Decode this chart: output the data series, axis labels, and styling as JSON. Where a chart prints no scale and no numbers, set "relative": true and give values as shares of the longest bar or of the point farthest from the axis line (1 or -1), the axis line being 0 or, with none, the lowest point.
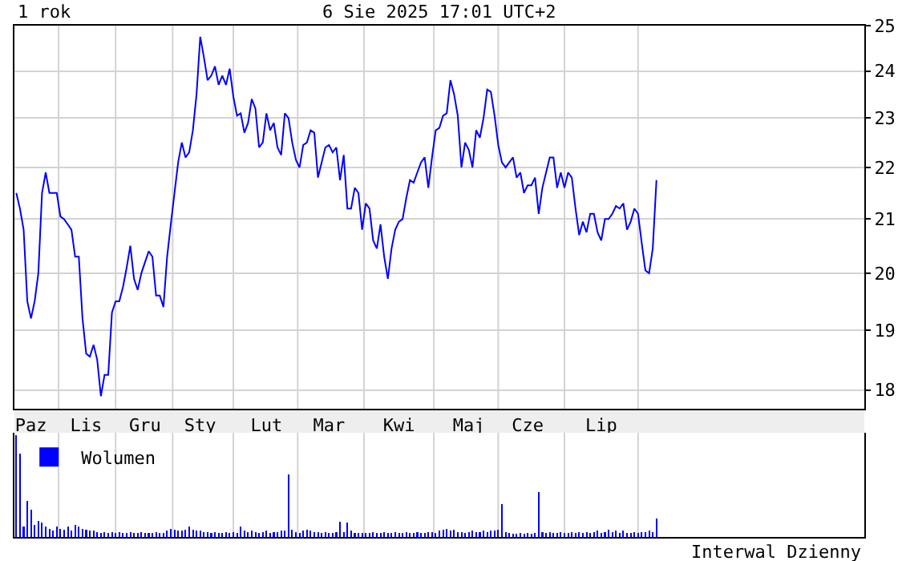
{
  "chart_data": [
    {
      "type": "line",
      "title": "1 rok",
      "subtitle": "6 Sie 2025 17:01 UTC+2",
      "log": true,
      "grid": true,
      "ylim": [
        17.7,
        25
      ],
      "yticks": [
        18,
        19,
        20,
        21,
        22,
        23,
        24,
        25
      ],
      "categories": [
        null,
        null,
        null,
        null,
        "Paz",
        null,
        null,
        null,
        null,
        null,
        null,
        null,
        null,
        null,
        null,
        null,
        null,
        null,
        null,
        "Lis",
        null,
        null,
        null,
        null,
        null,
        null,
        null,
        null,
        null,
        null,
        null,
        null,
        null,
        null,
        null,
        "Gru",
        null,
        null,
        null,
        null,
        null,
        null,
        null,
        null,
        null,
        null,
        null,
        null,
        null,
        null,
        "Sty",
        null,
        null,
        null,
        null,
        null,
        null,
        null,
        null,
        null,
        null,
        null,
        null,
        null,
        null,
        null,
        null,
        null,
        "Lut",
        null,
        null,
        null,
        null,
        null,
        null,
        null,
        null,
        null,
        null,
        null,
        null,
        null,
        null,
        null,
        null,
        "Mar",
        null,
        null,
        null,
        null,
        null,
        null,
        null,
        null,
        null,
        null,
        null,
        null,
        null,
        null,
        null,
        null,
        null,
        null,
        "Kwi",
        null,
        null,
        null,
        null,
        null,
        null,
        null,
        null,
        null,
        null,
        null,
        null,
        null,
        null,
        null,
        null,
        null,
        null,
        "Maj",
        null,
        null,
        null,
        null,
        null,
        null,
        null,
        null,
        null,
        null,
        null,
        null,
        null,
        null,
        null,
        "Cze",
        null,
        null,
        null,
        null,
        null,
        null,
        null,
        null,
        null,
        null,
        null,
        null,
        null,
        null,
        null,
        null,
        null,
        null,
        null,
        "Lip",
        null,
        null,
        null,
        null,
        null,
        null,
        null,
        null,
        null,
        null,
        null,
        null,
        null,
        null,
        null,
        null,
        null,
        null,
        null,
        null,
        null,
        null,
        null,
        null,
        null,
        null,
        null,
        null,
        null,
        null,
        null,
        null,
        null,
        null,
        null,
        null,
        null,
        null,
        null,
        null,
        null,
        null,
        null,
        null,
        null,
        null,
        null,
        null,
        null,
        null,
        null,
        null,
        null,
        null,
        null,
        null,
        null,
        null,
        null,
        null,
        null,
        null,
        null,
        null,
        null,
        null,
        null,
        null,
        null,
        null,
        null
      ],
      "series": [
        {
          "color": "#0000ff",
          "values": [
            21.5,
            21.2,
            20.8,
            19.5,
            19.2,
            19.5,
            20.0,
            21.5,
            21.9,
            21.5,
            21.5,
            21.5,
            21.05,
            21.0,
            20.9,
            20.8,
            20.3,
            20.3,
            19.2,
            18.6,
            18.55,
            18.75,
            18.5,
            17.9,
            18.25,
            18.25,
            19.3,
            19.5,
            19.5,
            19.75,
            20.1,
            20.5,
            19.9,
            19.7,
            20.0,
            20.2,
            20.4,
            20.3,
            19.6,
            19.6,
            19.4,
            20.3,
            20.9,
            21.5,
            22.1,
            22.5,
            22.2,
            22.3,
            22.75,
            23.5,
            24.75,
            24.3,
            23.8,
            23.9,
            24.1,
            23.7,
            23.9,
            23.7,
            24.05,
            23.45,
            23.05,
            23.1,
            22.7,
            22.9,
            23.4,
            23.2,
            22.4,
            22.5,
            23.1,
            22.75,
            22.9,
            22.4,
            22.25,
            23.1,
            23.0,
            22.5,
            22.15,
            22.0,
            22.45,
            22.5,
            22.75,
            22.7,
            21.8,
            22.1,
            22.4,
            22.45,
            22.3,
            22.4,
            21.75,
            22.25,
            21.2,
            21.2,
            21.6,
            21.5,
            20.8,
            21.3,
            21.2,
            20.6,
            20.45,
            20.9,
            20.3,
            19.9,
            20.45,
            20.8,
            20.95,
            21.0,
            21.4,
            21.75,
            21.7,
            21.9,
            22.1,
            22.2,
            21.6,
            22.2,
            22.75,
            22.8,
            23.05,
            23.1,
            23.8,
            23.5,
            23.05,
            22.0,
            22.5,
            22.35,
            22.0,
            22.75,
            22.6,
            23.0,
            23.6,
            23.55,
            23.05,
            22.45,
            22.1,
            22.0,
            22.1,
            22.2,
            21.8,
            21.9,
            21.5,
            21.65,
            21.65,
            21.8,
            21.1,
            21.6,
            21.9,
            22.2,
            22.2,
            21.6,
            21.9,
            21.6,
            21.9,
            21.8,
            21.2,
            20.7,
            20.95,
            20.75,
            21.1,
            21.1,
            20.75,
            20.6,
            21.0,
            21.0,
            21.1,
            21.25,
            21.2,
            21.3,
            20.8,
            20.95,
            21.2,
            21.1,
            20.55,
            20.05,
            20.0,
            20.45,
            21.75,
            null,
            null,
            null,
            null,
            null,
            null,
            null,
            null,
            null,
            null,
            null,
            null,
            null,
            null,
            null,
            null,
            null,
            null,
            null,
            null,
            null,
            null,
            null,
            null,
            null,
            null,
            null,
            null,
            null,
            null,
            null,
            null,
            null,
            null,
            null,
            null,
            null,
            null,
            null,
            null,
            null,
            null,
            null,
            null,
            null,
            null,
            null,
            null,
            null,
            null,
            null,
            null,
            null,
            null,
            null,
            null
          ]
        }
      ]
    },
    {
      "type": "bar",
      "relative": true,
      "tick_labels": false,
      "grid": "x",
      "legend": "top left",
      "annotations": [
        "Interwal Dzienny"
      ],
      "categories": [
        null,
        null,
        null,
        null,
        null,
        null,
        null,
        null,
        null,
        null,
        null,
        null,
        null,
        null,
        null,
        null,
        null,
        null,
        null,
        null,
        null,
        null,
        null,
        null,
        null,
        null,
        null,
        null,
        null,
        null,
        null,
        null,
        null,
        null,
        null,
        null,
        null,
        null,
        null,
        null,
        null,
        null,
        null,
        null,
        null,
        null,
        null,
        null,
        null,
        null,
        null,
        null,
        null,
        null,
        null,
        null,
        null,
        null,
        null,
        null,
        null,
        null,
        null,
        null,
        null,
        null,
        null,
        null,
        null,
        null,
        null,
        null,
        null,
        null,
        null,
        null,
        null,
        null,
        null,
        null,
        null,
        null,
        null,
        null,
        null,
        null,
        null,
        null,
        null,
        null,
        null,
        null,
        null,
        null,
        null,
        null,
        null,
        null,
        null,
        null,
        null,
        null,
        null,
        null,
        null,
        null,
        null,
        null,
        null,
        null,
        null,
        null,
        null,
        null,
        null,
        null,
        null,
        null,
        null,
        null,
        null,
        null,
        null,
        null,
        null,
        null,
        null,
        null,
        null,
        null,
        null,
        null,
        null,
        null,
        null,
        null,
        null,
        null,
        null,
        null,
        null,
        null,
        null,
        null,
        null,
        null,
        null,
        null,
        null,
        null,
        null,
        null,
        null,
        null,
        null,
        null,
        null,
        null,
        null,
        null,
        null,
        null,
        null,
        null,
        null,
        null,
        null,
        null,
        null,
        null,
        null,
        null,
        null,
        null,
        null,
        null,
        null,
        null,
        null,
        null,
        null,
        null,
        null,
        null,
        null,
        null,
        null,
        null,
        null,
        null,
        null,
        null,
        null,
        null,
        null,
        null,
        null,
        null,
        null,
        null,
        null,
        null,
        null,
        null,
        null,
        null,
        null,
        null,
        null,
        null,
        null,
        null,
        null,
        null,
        null,
        null,
        null,
        null,
        null,
        null,
        null,
        null,
        null,
        null,
        null,
        null,
        null,
        null,
        null,
        null,
        null
      ],
      "series": [
        {
          "name": "Wolumen",
          "color": "#0000ff",
          "values": [
            1.0,
            0.82,
            0.1,
            0.35,
            0.27,
            0.12,
            0.16,
            0.14,
            0.1,
            0.08,
            0.06,
            0.1,
            0.08,
            0.07,
            0.1,
            0.06,
            0.12,
            0.1,
            0.08,
            0.07,
            0.06,
            0.06,
            0.05,
            0.04,
            0.05,
            0.04,
            0.05,
            0.04,
            0.05,
            0.04,
            0.04,
            0.05,
            0.04,
            0.04,
            0.05,
            0.04,
            0.04,
            0.04,
            0.05,
            0.04,
            0.04,
            0.06,
            0.08,
            0.07,
            0.06,
            0.06,
            0.07,
            0.1,
            0.07,
            0.06,
            0.06,
            0.05,
            0.05,
            0.04,
            0.05,
            0.04,
            0.04,
            0.05,
            0.04,
            0.05,
            0.04,
            0.1,
            0.06,
            0.05,
            0.06,
            0.05,
            0.04,
            0.05,
            0.06,
            0.04,
            0.05,
            0.05,
            0.06,
            0.06,
            0.61,
            0.07,
            0.05,
            0.04,
            0.06,
            0.07,
            0.06,
            0.05,
            0.05,
            0.04,
            0.05,
            0.04,
            0.04,
            0.05,
            0.15,
            0.05,
            0.14,
            0.06,
            0.04,
            0.04,
            0.04,
            0.04,
            0.04,
            0.05,
            0.04,
            0.04,
            0.05,
            0.04,
            0.04,
            0.05,
            0.04,
            0.04,
            0.05,
            0.04,
            0.04,
            0.05,
            0.04,
            0.04,
            0.05,
            0.05,
            0.04,
            0.06,
            0.07,
            0.08,
            0.06,
            0.07,
            0.05,
            0.05,
            0.04,
            0.05,
            0.06,
            0.05,
            0.05,
            0.06,
            0.05,
            0.06,
            0.06,
            0.07,
            0.32,
            0.05,
            0.04,
            0.03,
            0.03,
            0.04,
            0.03,
            0.04,
            0.03,
            0.04,
            0.44,
            0.05,
            0.04,
            0.05,
            0.04,
            0.04,
            0.05,
            0.04,
            0.04,
            0.05,
            0.04,
            0.05,
            0.04,
            0.05,
            0.04,
            0.05,
            0.06,
            0.04,
            0.05,
            0.07,
            0.05,
            0.06,
            0.04,
            0.06,
            0.04,
            0.04,
            0.05,
            0.04,
            0.05,
            0.05,
            0.06,
            0.05,
            0.18,
            null,
            null,
            null,
            null,
            null,
            null,
            null,
            null,
            null,
            null,
            null,
            null,
            null,
            null,
            null,
            null,
            null,
            null,
            null,
            null,
            null,
            null,
            null,
            null,
            null,
            null,
            null,
            null,
            null,
            null,
            null,
            null,
            null,
            null,
            null,
            null,
            null,
            null,
            null,
            null,
            null,
            null,
            null,
            null,
            null,
            null,
            null,
            null,
            null,
            null,
            null,
            null,
            null,
            null,
            null,
            null
          ]
        }
      ]
    }
  ]
}
